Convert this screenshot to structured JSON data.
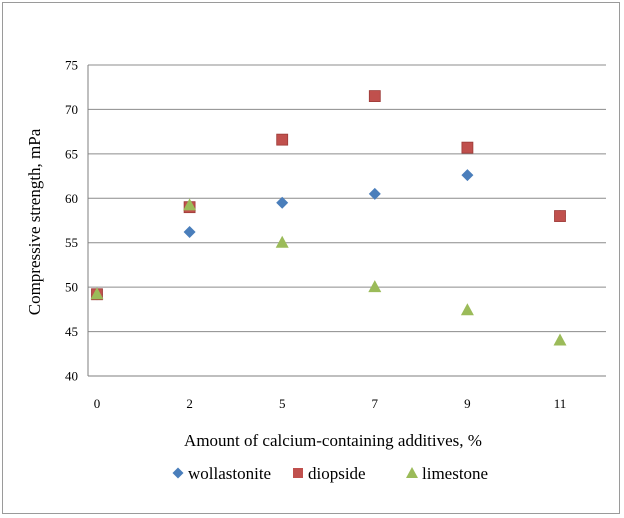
{
  "chart_data": {
    "type": "scatter",
    "xlabel": "Amount of calcium-containing additives, %",
    "ylabel": "Compressive strength, mPa",
    "categories": [
      "0",
      "2",
      "5",
      "7",
      "9",
      "11"
    ],
    "ylim": [
      40,
      75
    ],
    "yticks": [
      "40",
      "45",
      "50",
      "55",
      "60",
      "65",
      "70",
      "75"
    ],
    "grid": "horizontal",
    "legend": "bottom",
    "trendline": "polynomial",
    "series": [
      {
        "name": "wollastonite",
        "marker": "diamond",
        "color": "#4A7EBB",
        "curve_color": "#4BACC6",
        "values": [
          49.2,
          56.2,
          59.5,
          60.5,
          62.6,
          58.0
        ]
      },
      {
        "name": "diopside",
        "marker": "square",
        "color": "#C0504D",
        "curve_color": "#8B1A1A",
        "values": [
          49.2,
          59.0,
          66.6,
          71.5,
          65.7,
          58.0
        ]
      },
      {
        "name": "limestone",
        "marker": "triangle",
        "color": "#9BBB59",
        "curve_color": "#92D050",
        "values": [
          49.2,
          59.2,
          55.0,
          50.0,
          47.4,
          44.0
        ]
      }
    ]
  }
}
